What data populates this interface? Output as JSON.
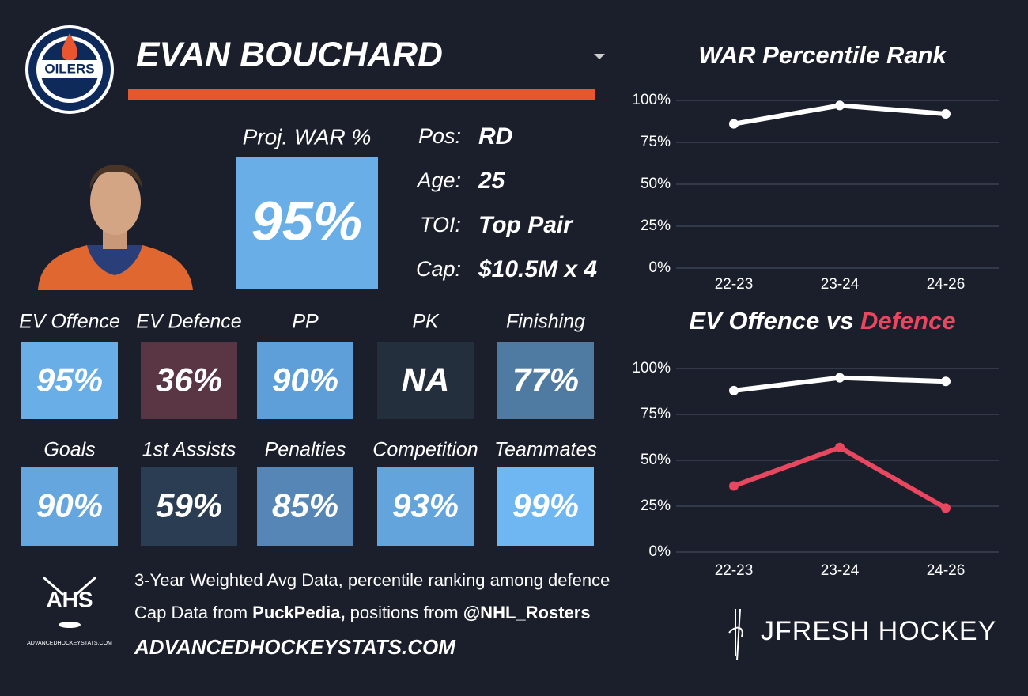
{
  "header": {
    "logo": "OILERS",
    "name": "EVAN BOUCHARD"
  },
  "proj_war": {
    "label": "Proj. WAR %",
    "value": "95%",
    "color": "#6aaee8"
  },
  "info": [
    {
      "label": "Pos:",
      "value": "RD"
    },
    {
      "label": "Age:",
      "value": "25"
    },
    {
      "label": "TOI:",
      "value": "Top Pair"
    },
    {
      "label": "Cap:",
      "value": "$10.5M x 4"
    }
  ],
  "tiles": [
    {
      "label": "EV Offence",
      "value": "95%",
      "color": "#6aaee8"
    },
    {
      "label": "EV Defence",
      "value": "36%",
      "color": "#5a3543"
    },
    {
      "label": "PP",
      "value": "90%",
      "color": "#5e9fd9"
    },
    {
      "label": "PK",
      "value": "NA",
      "color": "#232f3d"
    },
    {
      "label": "Finishing",
      "value": "77%",
      "color": "#4f7ba3"
    },
    {
      "label": "Goals",
      "value": "90%",
      "color": "#65a6de"
    },
    {
      "label": "1st Assists",
      "value": "59%",
      "color": "#2b3d52"
    },
    {
      "label": "Penalties",
      "value": "85%",
      "color": "#5586b6"
    },
    {
      "label": "Competition",
      "value": "93%",
      "color": "#63a4dd"
    },
    {
      "label": "Teammates",
      "value": "99%",
      "color": "#6eb7f3"
    }
  ],
  "footer": {
    "ahs_logo": "AHS",
    "ahs_caption": "ADVANCEDHOCKEYSTATS.COM",
    "line1": "3-Year Weighted Avg Data, percentile ranking among defence",
    "line2": [
      {
        "text": "Cap Data from ",
        "bold": false
      },
      {
        "text": "PuckPedia,",
        "bold": true
      },
      {
        "text": " positions from ",
        "bold": false
      },
      {
        "text": "@NHL_Rosters",
        "bold": true
      }
    ],
    "site": "ADVANCEDHOCKEYSTATS.COM",
    "brand": "JFRESH HOCKEY"
  },
  "chart_data": [
    {
      "type": "line",
      "title_parts": [
        {
          "text": "WAR Percentile Rank",
          "color": "#ffffff"
        }
      ],
      "categories": [
        "22-23",
        "23-24",
        "24-26"
      ],
      "series": [
        {
          "color": "#ffffff",
          "values": [
            86,
            97,
            92
          ]
        }
      ],
      "ylim": [
        0,
        100
      ],
      "yticks": [
        {
          "value": 0,
          "label": "0%"
        },
        {
          "value": 25,
          "label": "25%"
        },
        {
          "value": 50,
          "label": "50%"
        },
        {
          "value": 75,
          "label": "75%"
        },
        {
          "value": 100,
          "label": "100%"
        }
      ],
      "grid": true
    },
    {
      "type": "line",
      "title_parts": [
        {
          "text": "EV Offence vs ",
          "color": "#ffffff"
        },
        {
          "text": "Defence",
          "color": "#e8475f"
        }
      ],
      "categories": [
        "22-23",
        "23-24",
        "24-26"
      ],
      "series": [
        {
          "color": "#ffffff",
          "values": [
            88,
            95,
            93
          ]
        },
        {
          "color": "#e8475f",
          "values": [
            36,
            57,
            24
          ]
        }
      ],
      "ylim": [
        0,
        100
      ],
      "yticks": [
        {
          "value": 0,
          "label": "0%"
        },
        {
          "value": 25,
          "label": "25%"
        },
        {
          "value": 50,
          "label": "50%"
        },
        {
          "value": 75,
          "label": "75%"
        },
        {
          "value": 100,
          "label": "100%"
        }
      ],
      "grid": true
    }
  ]
}
